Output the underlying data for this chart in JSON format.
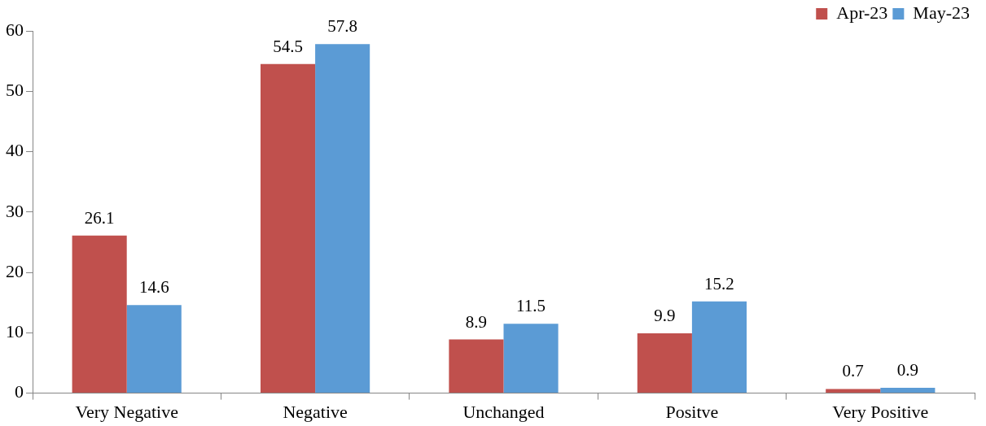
{
  "chart_data": {
    "type": "bar",
    "categories": [
      "Very Negative",
      "Negative",
      "Unchanged",
      "Positve",
      "Very Positive"
    ],
    "series": [
      {
        "name": "Apr-23",
        "color": "#c0504d",
        "values": [
          26.1,
          54.5,
          8.9,
          9.9,
          0.7
        ]
      },
      {
        "name": "May-23",
        "color": "#5b9bd5",
        "values": [
          14.6,
          57.8,
          11.5,
          15.2,
          0.9
        ]
      }
    ],
    "ylim": [
      0,
      60
    ],
    "yticks": [
      0,
      10,
      20,
      30,
      40,
      50,
      60
    ],
    "data_labels": true,
    "legend": "top right",
    "grid": false
  }
}
